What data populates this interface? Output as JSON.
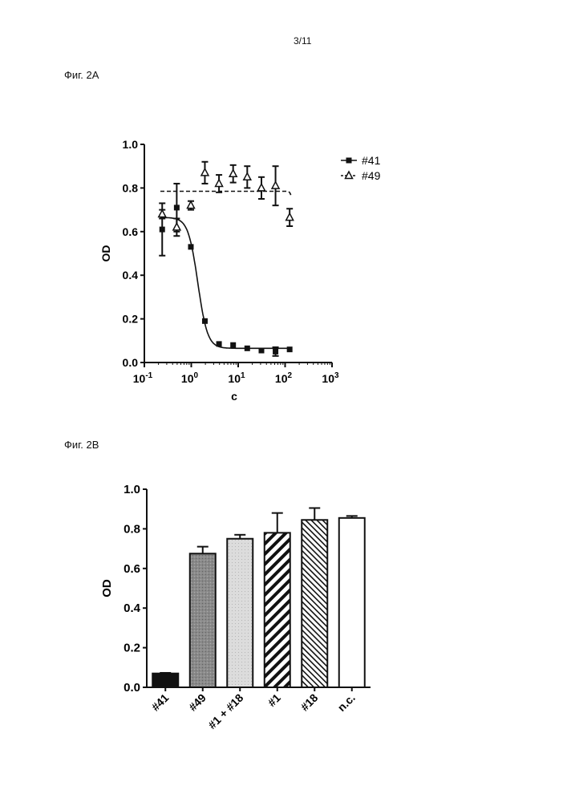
{
  "page": {
    "number": "3/11"
  },
  "figures": {
    "a_label": "Фиг. 2А",
    "b_label": "Фиг. 2В"
  },
  "chart_data": [
    {
      "type": "scatter",
      "figure": "Фиг. 2А",
      "xlabel": "c",
      "ylabel": "OD",
      "xscale": "log",
      "xlim": [
        0.1,
        1000
      ],
      "ylim": [
        0.0,
        1.0
      ],
      "x_ticks": [
        {
          "value": 0.1,
          "base": "10",
          "exp": "-1"
        },
        {
          "value": 1,
          "base": "10",
          "exp": "0"
        },
        {
          "value": 10,
          "base": "10",
          "exp": "1"
        },
        {
          "value": 100,
          "base": "10",
          "exp": "2"
        },
        {
          "value": 1000,
          "base": "10",
          "exp": "3"
        }
      ],
      "y_ticks": [
        "0.0",
        "0.2",
        "0.4",
        "0.6",
        "0.8",
        "1.0"
      ],
      "legend_position": "top-right",
      "grid": false,
      "series": [
        {
          "name": "#41",
          "marker": "filled-square",
          "fit_line": "solid",
          "points": [
            {
              "x": 0.24,
              "y": 0.61,
              "err": 0.12
            },
            {
              "x": 0.49,
              "y": 0.71,
              "err": 0.11
            },
            {
              "x": 0.98,
              "y": 0.53,
              "err": 0.0
            },
            {
              "x": 1.95,
              "y": 0.19,
              "err": 0.0
            },
            {
              "x": 3.9,
              "y": 0.085,
              "err": 0.0
            },
            {
              "x": 7.8,
              "y": 0.08,
              "err": 0.0
            },
            {
              "x": 15.6,
              "y": 0.065,
              "err": 0.0
            },
            {
              "x": 31.3,
              "y": 0.055,
              "err": 0.0
            },
            {
              "x": 62.5,
              "y": 0.05,
              "err": 0.02
            },
            {
              "x": 125,
              "y": 0.06,
              "err": 0.0
            }
          ],
          "fit": {
            "top": 0.665,
            "bottom": 0.065,
            "ec50": 1.38,
            "hill": 4.2
          }
        },
        {
          "name": "#49",
          "marker": "open-triangle",
          "fit_line": "dashed",
          "points": [
            {
              "x": 0.24,
              "y": 0.68,
              "err": 0.02
            },
            {
              "x": 0.49,
              "y": 0.62,
              "err": 0.04
            },
            {
              "x": 0.98,
              "y": 0.72,
              "err": 0.02
            },
            {
              "x": 1.95,
              "y": 0.87,
              "err": 0.05
            },
            {
              "x": 3.9,
              "y": 0.82,
              "err": 0.04
            },
            {
              "x": 7.8,
              "y": 0.865,
              "err": 0.04
            },
            {
              "x": 15.6,
              "y": 0.85,
              "err": 0.05
            },
            {
              "x": 31.3,
              "y": 0.8,
              "err": 0.05
            },
            {
              "x": 62.5,
              "y": 0.81,
              "err": 0.09
            },
            {
              "x": 125,
              "y": 0.665,
              "err": 0.04
            }
          ],
          "fit": {
            "top": 0.785,
            "bottom": 0.66,
            "ec50": 145,
            "hill": 20
          }
        }
      ]
    },
    {
      "type": "bar",
      "figure": "Фиг. 2В",
      "xlabel": "",
      "ylabel": "OD",
      "ylim": [
        0.0,
        1.0
      ],
      "y_ticks": [
        "0.0",
        "0.2",
        "0.4",
        "0.6",
        "0.8",
        "1.0"
      ],
      "grid": false,
      "categories": [
        "#41",
        "#49",
        "#1 + #18",
        "#1",
        "#18",
        "n.c."
      ],
      "values": [
        0.07,
        0.675,
        0.75,
        0.78,
        0.845,
        0.855
      ],
      "errors": [
        0.003,
        0.035,
        0.02,
        0.1,
        0.06,
        0.01
      ],
      "fills": [
        "solid-black",
        "dark-gray",
        "light-gray",
        "wide-diagonal-hatch",
        "fine-diagonal-hatch",
        "white"
      ]
    }
  ]
}
